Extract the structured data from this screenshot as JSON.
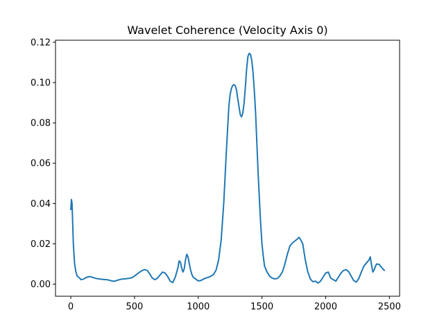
{
  "chart_data": {
    "type": "line",
    "title": "Wavelet Coherence (Velocity Axis 0)",
    "xlabel": "",
    "ylabel": "",
    "xlim": [
      -120,
      2580
    ],
    "ylim": [
      -0.006,
      0.121
    ],
    "xticks": [
      0,
      500,
      1000,
      1500,
      2000,
      2500
    ],
    "xtick_labels": [
      "0",
      "500",
      "1000",
      "1500",
      "2000",
      "2500"
    ],
    "yticks": [
      0.0,
      0.02,
      0.04,
      0.06,
      0.08,
      0.1,
      0.12
    ],
    "ytick_labels": [
      "0.00",
      "0.02",
      "0.04",
      "0.06",
      "0.08",
      "0.10",
      "0.12"
    ],
    "grid": false,
    "legend": "none",
    "series": [
      {
        "color": "#1f77b4",
        "x": [
          0,
          5,
          10,
          15,
          20,
          30,
          40,
          50,
          60,
          70,
          80,
          100,
          120,
          150,
          180,
          200,
          230,
          260,
          280,
          300,
          320,
          340,
          360,
          380,
          400,
          420,
          450,
          480,
          500,
          530,
          560,
          580,
          600,
          620,
          640,
          660,
          680,
          700,
          720,
          740,
          760,
          780,
          800,
          820,
          840,
          850,
          860,
          870,
          880,
          890,
          900,
          910,
          920,
          930,
          940,
          950,
          960,
          980,
          1000,
          1020,
          1050,
          1080,
          1100,
          1120,
          1140,
          1160,
          1180,
          1200,
          1220,
          1240,
          1250,
          1260,
          1270,
          1280,
          1290,
          1300,
          1310,
          1320,
          1330,
          1340,
          1350,
          1360,
          1370,
          1380,
          1390,
          1400,
          1410,
          1420,
          1430,
          1440,
          1450,
          1460,
          1470,
          1480,
          1490,
          1500,
          1510,
          1520,
          1540,
          1560,
          1580,
          1600,
          1620,
          1640,
          1660,
          1680,
          1700,
          1720,
          1740,
          1760,
          1780,
          1790,
          1800,
          1820,
          1840,
          1860,
          1880,
          1900,
          1920,
          1940,
          1960,
          1980,
          2000,
          2020,
          2030,
          2040,
          2060,
          2080,
          2100,
          2120,
          2140,
          2160,
          2180,
          2200,
          2220,
          2240,
          2260,
          2280,
          2300,
          2320,
          2340,
          2350,
          2360,
          2370,
          2380,
          2390,
          2400,
          2420,
          2440,
          2460
        ],
        "y": [
          0.037,
          0.042,
          0.04,
          0.03,
          0.02,
          0.01,
          0.006,
          0.004,
          0.0035,
          0.003,
          0.0022,
          0.0025,
          0.0033,
          0.0038,
          0.0032,
          0.0028,
          0.0025,
          0.0023,
          0.0022,
          0.002,
          0.0016,
          0.0014,
          0.0018,
          0.0022,
          0.0025,
          0.0026,
          0.0028,
          0.0032,
          0.004,
          0.0055,
          0.0068,
          0.0072,
          0.0068,
          0.005,
          0.003,
          0.0022,
          0.003,
          0.0045,
          0.006,
          0.0055,
          0.0038,
          0.0015,
          0.0008,
          0.0035,
          0.008,
          0.0115,
          0.011,
          0.008,
          0.006,
          0.0075,
          0.012,
          0.0148,
          0.0135,
          0.01,
          0.007,
          0.0048,
          0.0035,
          0.0025,
          0.0016,
          0.0018,
          0.0028,
          0.0034,
          0.004,
          0.0048,
          0.007,
          0.012,
          0.022,
          0.04,
          0.065,
          0.088,
          0.094,
          0.097,
          0.0985,
          0.099,
          0.0985,
          0.0965,
          0.092,
          0.088,
          0.084,
          0.083,
          0.085,
          0.09,
          0.098,
          0.107,
          0.113,
          0.1145,
          0.114,
          0.111,
          0.105,
          0.096,
          0.085,
          0.07,
          0.055,
          0.042,
          0.03,
          0.02,
          0.014,
          0.009,
          0.006,
          0.004,
          0.003,
          0.0026,
          0.0028,
          0.004,
          0.006,
          0.01,
          0.015,
          0.019,
          0.0205,
          0.0215,
          0.0225,
          0.0232,
          0.0225,
          0.02,
          0.012,
          0.006,
          0.0025,
          0.0012,
          0.0015,
          0.0005,
          0.0015,
          0.0035,
          0.0055,
          0.006,
          0.0045,
          0.003,
          0.0022,
          0.0015,
          0.0035,
          0.0055,
          0.0068,
          0.0072,
          0.0062,
          0.004,
          0.0018,
          0.001,
          0.0028,
          0.006,
          0.009,
          0.0105,
          0.012,
          0.0135,
          0.0095,
          0.006,
          0.007,
          0.0088,
          0.01,
          0.0098,
          0.0082,
          0.0068
        ]
      }
    ]
  }
}
